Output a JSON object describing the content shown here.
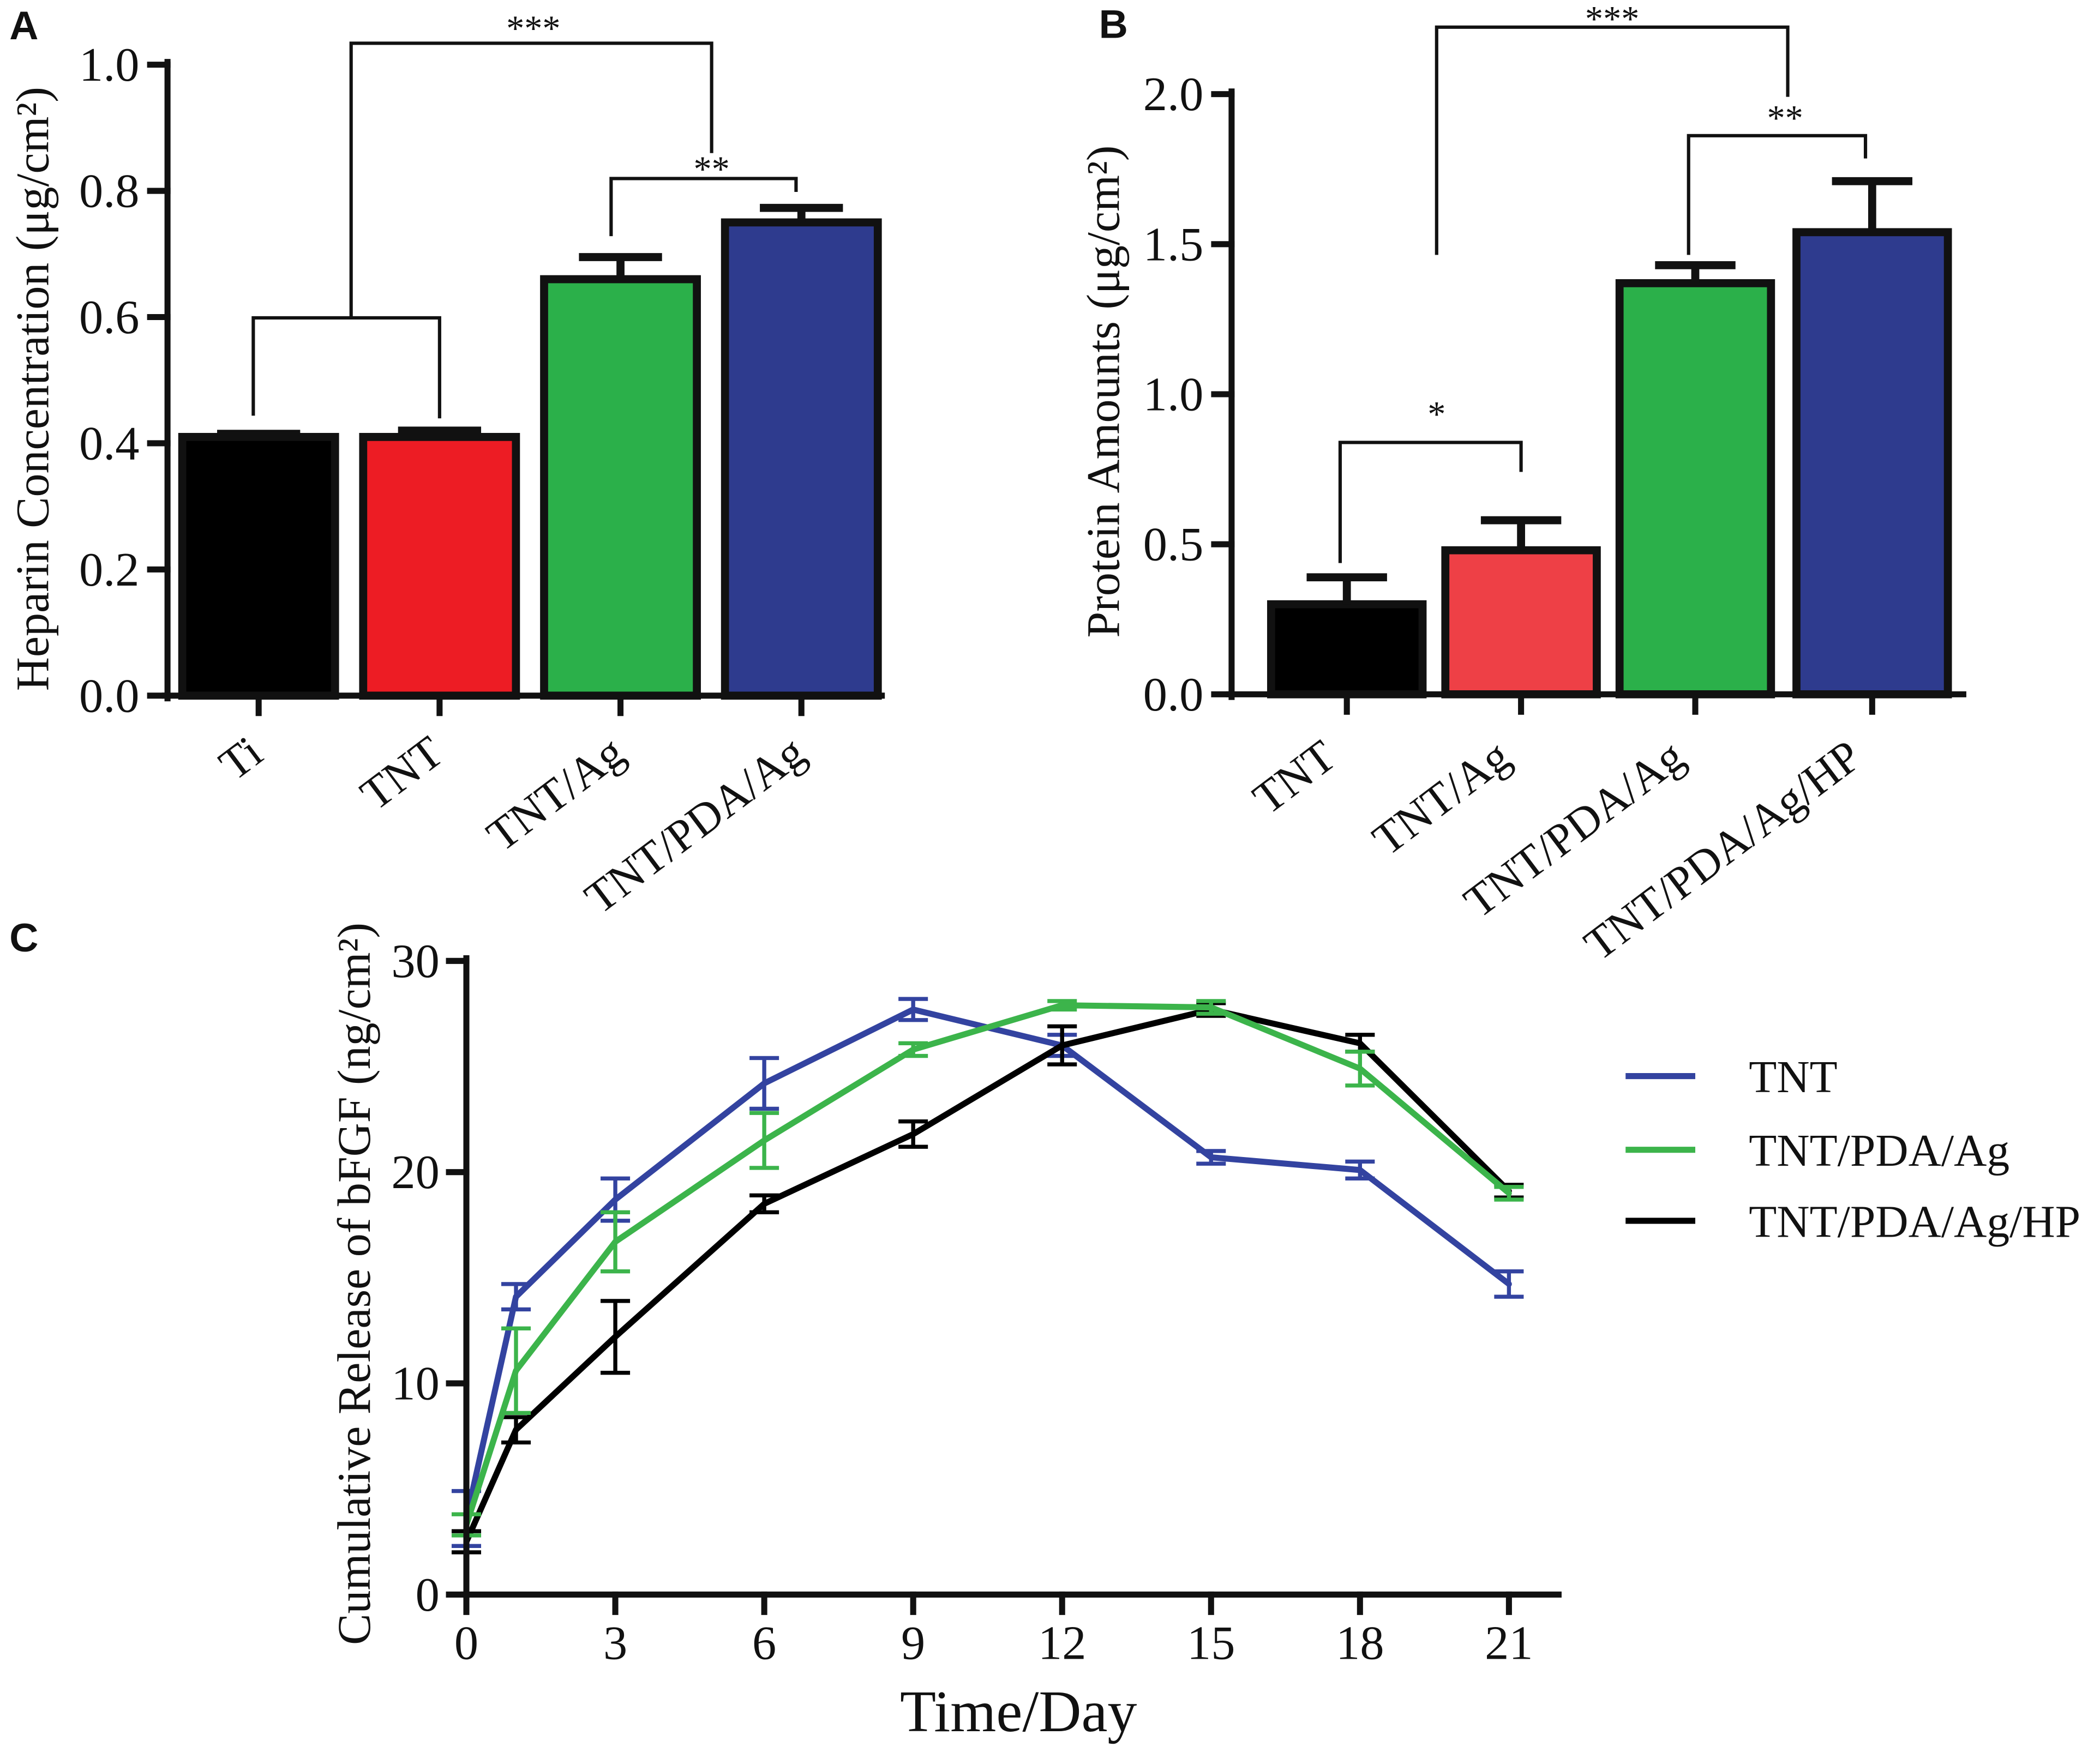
{
  "chart_data": [
    {
      "panel": "A",
      "type": "bar",
      "categories": [
        "Ti",
        "TNT",
        "TNT/Ag",
        "TNT/PDA/Ag"
      ],
      "values": [
        0.41,
        0.41,
        0.66,
        0.75
      ],
      "errors": [
        0.005,
        0.01,
        0.035,
        0.023
      ],
      "colors": [
        "#000000",
        "#ED1C24",
        "#2BB04A",
        "#2E3B8E"
      ],
      "ylabel": "Heparin Concentration (μg/cm²)",
      "ylim": [
        0,
        1.0
      ],
      "yticks": [
        "0.0",
        "0.2",
        "0.4",
        "0.6",
        "0.8",
        "1.0"
      ],
      "grid": false,
      "significance": [
        {
          "label": "**",
          "left": [
            2
          ],
          "right": [
            3
          ]
        },
        {
          "label": "***",
          "left": [
            0,
            1
          ],
          "right": [
            2,
            3
          ]
        }
      ]
    },
    {
      "panel": "B",
      "type": "bar",
      "categories": [
        "TNT",
        "TNT/Ag",
        "TNT/PDA/Ag",
        "TNT/PDA/Ag/HP"
      ],
      "values": [
        0.3,
        0.48,
        1.37,
        1.54
      ],
      "errors": [
        0.09,
        0.1,
        0.06,
        0.17
      ],
      "colors": [
        "#000000",
        "#EE4046",
        "#2BB04A",
        "#2E3B8E"
      ],
      "ylabel": "Protein Amounts (μg/cm²)",
      "ylim": [
        0,
        2.0
      ],
      "yticks": [
        "0.0",
        "0.5",
        "1.0",
        "1.5",
        "2.0"
      ],
      "grid": false,
      "significance": [
        {
          "label": "*",
          "left": [
            0
          ],
          "right": [
            1
          ]
        },
        {
          "label": "**",
          "left": [
            2
          ],
          "right": [
            3
          ]
        },
        {
          "label": "***",
          "left": [
            0,
            1
          ],
          "right": [
            2,
            3
          ]
        }
      ]
    },
    {
      "panel": "C",
      "type": "line",
      "x": [
        0,
        1,
        3,
        6,
        9,
        12,
        15,
        18,
        21
      ],
      "series": [
        {
          "name": "TNT",
          "color": "#3343A0",
          "values": [
            3.6,
            14.1,
            18.7,
            24.2,
            27.7,
            26.0,
            20.7,
            20.1,
            14.7
          ],
          "errors": [
            1.3,
            0.6,
            1.0,
            1.2,
            0.5,
            0.5,
            0.3,
            0.4,
            0.6
          ]
        },
        {
          "name": "TNT/PDA/Ag",
          "color": "#3CB44B",
          "values": [
            3.3,
            10.6,
            16.7,
            21.5,
            25.8,
            27.9,
            27.8,
            24.9,
            19.0
          ],
          "errors": [
            0.5,
            2.0,
            1.4,
            1.3,
            0.3,
            0.2,
            0.3,
            0.8,
            0.3
          ]
        },
        {
          "name": "TNT/PDA/Ag/HP",
          "color": "#000000",
          "values": [
            2.5,
            7.8,
            12.2,
            18.5,
            21.8,
            26.0,
            27.7,
            26.1,
            19.1
          ],
          "errors": [
            0.5,
            0.6,
            1.7,
            0.4,
            0.6,
            0.9,
            0.3,
            0.4,
            0.3
          ]
        }
      ],
      "xlabel": "Time/Day",
      "ylabel": "Cumulative Release of bFGF (ng/cm²)",
      "xlim": [
        0,
        22
      ],
      "ylim": [
        0,
        30
      ],
      "xticks": [
        "0",
        "3",
        "6",
        "9",
        "12",
        "15",
        "18",
        "21"
      ],
      "yticks": [
        "0",
        "10",
        "20",
        "30"
      ],
      "grid": false
    }
  ]
}
